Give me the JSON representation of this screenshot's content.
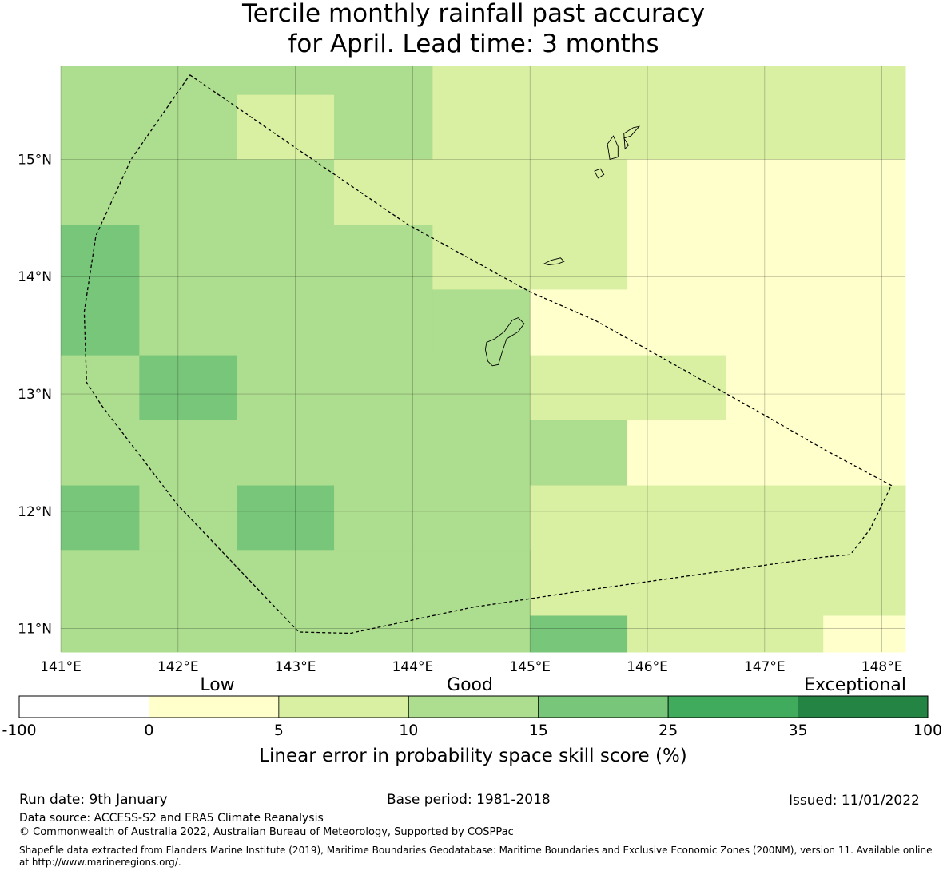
{
  "title": {
    "line1": "Tercile monthly rainfall past accuracy",
    "line2": "for April. Lead time: 3 months"
  },
  "map": {
    "lon_range": [
      141.0,
      148.2
    ],
    "lat_range": [
      10.8,
      15.8
    ],
    "x_ticks": [
      {
        "value": 141,
        "label": "141°E"
      },
      {
        "value": 142,
        "label": "142°E"
      },
      {
        "value": 143,
        "label": "143°E"
      },
      {
        "value": 144,
        "label": "144°E"
      },
      {
        "value": 145,
        "label": "145°E"
      },
      {
        "value": 146,
        "label": "146°E"
      },
      {
        "value": 147,
        "label": "147°E"
      },
      {
        "value": 148,
        "label": "148°E"
      }
    ],
    "y_ticks": [
      {
        "value": 15,
        "label": "15°N"
      },
      {
        "value": 14,
        "label": "14°N"
      },
      {
        "value": 13,
        "label": "13°N"
      },
      {
        "value": 12,
        "label": "12°N"
      },
      {
        "value": 11,
        "label": "11°N"
      }
    ],
    "grid": true,
    "bin_colors": [
      "#ffffff",
      "#ffffcc",
      "#d9f0a3",
      "#addd8e",
      "#78c679",
      "#41ab5d",
      "#238443"
    ],
    "cells": [
      {
        "lon": [
          141.0,
          142.5
        ],
        "lat": [
          15.0,
          15.8
        ],
        "bin": 3
      },
      {
        "lon": [
          142.5,
          143.33
        ],
        "lat": [
          15.55,
          15.8
        ],
        "bin": 3
      },
      {
        "lon": [
          142.5,
          143.33
        ],
        "lat": [
          15.0,
          15.55
        ],
        "bin": 2
      },
      {
        "lon": [
          143.33,
          144.17
        ],
        "lat": [
          15.0,
          15.8
        ],
        "bin": 3
      },
      {
        "lon": [
          144.17,
          148.2
        ],
        "lat": [
          15.0,
          15.8
        ],
        "bin": 2
      },
      {
        "lon": [
          141.0,
          143.33
        ],
        "lat": [
          14.44,
          15.0
        ],
        "bin": 3
      },
      {
        "lon": [
          143.33,
          145.83
        ],
        "lat": [
          14.44,
          15.0
        ],
        "bin": 2
      },
      {
        "lon": [
          145.83,
          148.2
        ],
        "lat": [
          14.44,
          15.0
        ],
        "bin": 1
      },
      {
        "lon": [
          141.0,
          141.67
        ],
        "lat": [
          13.33,
          14.44
        ],
        "bin": 4
      },
      {
        "lon": [
          141.67,
          144.17
        ],
        "lat": [
          13.33,
          14.44
        ],
        "bin": 3
      },
      {
        "lon": [
          144.17,
          145.83
        ],
        "lat": [
          13.89,
          14.44
        ],
        "bin": 2
      },
      {
        "lon": [
          144.17,
          145.0
        ],
        "lat": [
          13.33,
          13.89
        ],
        "bin": 3
      },
      {
        "lon": [
          145.0,
          145.83
        ],
        "lat": [
          13.33,
          13.89
        ],
        "bin": 1
      },
      {
        "lon": [
          145.83,
          148.2
        ],
        "lat": [
          13.33,
          14.44
        ],
        "bin": 1
      },
      {
        "lon": [
          141.0,
          141.67
        ],
        "lat": [
          12.22,
          13.33
        ],
        "bin": 3
      },
      {
        "lon": [
          141.67,
          142.5
        ],
        "lat": [
          12.78,
          13.33
        ],
        "bin": 4
      },
      {
        "lon": [
          141.67,
          142.5
        ],
        "lat": [
          12.22,
          12.78
        ],
        "bin": 3
      },
      {
        "lon": [
          142.5,
          145.0
        ],
        "lat": [
          12.22,
          13.33
        ],
        "bin": 3
      },
      {
        "lon": [
          145.0,
          146.67
        ],
        "lat": [
          12.78,
          13.33
        ],
        "bin": 2
      },
      {
        "lon": [
          145.0,
          145.83
        ],
        "lat": [
          12.22,
          12.78
        ],
        "bin": 3
      },
      {
        "lon": [
          145.83,
          146.67
        ],
        "lat": [
          12.22,
          12.78
        ],
        "bin": 1
      },
      {
        "lon": [
          146.67,
          148.2
        ],
        "lat": [
          12.22,
          13.33
        ],
        "bin": 1
      },
      {
        "lon": [
          141.0,
          141.67
        ],
        "lat": [
          11.67,
          12.22
        ],
        "bin": 4
      },
      {
        "lon": [
          141.67,
          142.5
        ],
        "lat": [
          11.67,
          12.22
        ],
        "bin": 3
      },
      {
        "lon": [
          142.5,
          143.33
        ],
        "lat": [
          11.67,
          12.22
        ],
        "bin": 4
      },
      {
        "lon": [
          143.33,
          145.0
        ],
        "lat": [
          11.67,
          12.22
        ],
        "bin": 3
      },
      {
        "lon": [
          145.0,
          148.2
        ],
        "lat": [
          11.11,
          12.22
        ],
        "bin": 2
      },
      {
        "lon": [
          141.0,
          145.0
        ],
        "lat": [
          10.8,
          11.67
        ],
        "bin": 3
      },
      {
        "lon": [
          145.0,
          145.83
        ],
        "lat": [
          10.8,
          11.11
        ],
        "bin": 4
      },
      {
        "lon": [
          145.83,
          147.5
        ],
        "lat": [
          10.8,
          11.11
        ],
        "bin": 2
      },
      {
        "lon": [
          147.5,
          148.2
        ],
        "lat": [
          10.8,
          11.11
        ],
        "bin": 1
      }
    ],
    "eez_boundary": [
      [
        142.1,
        15.72
      ],
      [
        143.0,
        15.1
      ],
      [
        143.95,
        14.45
      ],
      [
        145.0,
        13.87
      ],
      [
        145.55,
        13.63
      ],
      [
        146.0,
        13.38
      ],
      [
        146.5,
        13.1
      ],
      [
        147.0,
        12.82
      ],
      [
        147.5,
        12.53
      ],
      [
        148.08,
        12.22
      ],
      [
        147.9,
        11.85
      ],
      [
        147.73,
        11.63
      ],
      [
        147.5,
        11.61
      ],
      [
        146.5,
        11.47
      ],
      [
        145.5,
        11.33
      ],
      [
        144.5,
        11.18
      ],
      [
        143.47,
        10.96
      ],
      [
        143.03,
        10.97
      ],
      [
        142.0,
        12.05
      ],
      [
        141.35,
        12.9
      ],
      [
        141.22,
        13.1
      ],
      [
        141.2,
        13.7
      ],
      [
        141.3,
        14.35
      ],
      [
        141.6,
        15.0
      ],
      [
        142.1,
        15.72
      ]
    ],
    "islands": [
      [
        [
          144.63,
          13.44
        ],
        [
          144.7,
          13.47
        ],
        [
          144.78,
          13.53
        ],
        [
          144.85,
          13.63
        ],
        [
          144.9,
          13.65
        ],
        [
          144.95,
          13.6
        ],
        [
          144.9,
          13.53
        ],
        [
          144.8,
          13.47
        ],
        [
          144.76,
          13.35
        ],
        [
          144.73,
          13.25
        ],
        [
          144.68,
          13.24
        ],
        [
          144.64,
          13.28
        ],
        [
          144.62,
          13.38
        ],
        [
          144.63,
          13.44
        ]
      ],
      [
        [
          145.12,
          14.11
        ],
        [
          145.18,
          14.14
        ],
        [
          145.26,
          14.16
        ],
        [
          145.29,
          14.13
        ],
        [
          145.24,
          14.11
        ],
        [
          145.16,
          14.1
        ],
        [
          145.12,
          14.11
        ]
      ],
      [
        [
          145.55,
          14.9
        ],
        [
          145.6,
          14.92
        ],
        [
          145.63,
          14.87
        ],
        [
          145.58,
          14.84
        ],
        [
          145.55,
          14.9
        ]
      ],
      [
        [
          145.68,
          15.0
        ],
        [
          145.75,
          15.02
        ],
        [
          145.75,
          15.11
        ],
        [
          145.71,
          15.2
        ],
        [
          145.66,
          15.13
        ],
        [
          145.68,
          15.0
        ]
      ],
      [
        [
          145.81,
          15.09
        ],
        [
          145.84,
          15.12
        ],
        [
          145.8,
          15.18
        ],
        [
          145.86,
          15.2
        ],
        [
          145.93,
          15.28
        ],
        [
          145.88,
          15.27
        ],
        [
          145.8,
          15.22
        ],
        [
          145.81,
          15.09
        ]
      ]
    ]
  },
  "colorbar": {
    "category_labels": [
      "Low",
      "Good",
      "Exceptional"
    ],
    "boundaries": [
      -100,
      0,
      5,
      10,
      15,
      25,
      35,
      100
    ],
    "tick_labels": [
      "-100",
      "0",
      "5",
      "10",
      "15",
      "25",
      "35",
      "100"
    ],
    "colors": [
      "#ffffff",
      "#ffffcc",
      "#d9f0a3",
      "#addd8e",
      "#78c679",
      "#41ab5d",
      "#238443"
    ],
    "axis_label": "Linear error in probability space skill score (%)"
  },
  "footer": {
    "run_date": "Run date: 9th January",
    "base_period": "Base period: 1981-2018",
    "issued": "Issued: 11/01/2022",
    "data_source": "Data source: ACCESS-S2 and ERA5 Climate Reanalysis",
    "copyright": "© Commonwealth of Australia 2022, Australian Bureau of Meteorology, Supported by COSPPac",
    "shapefile": "Shapefile data extracted from Flanders Marine Institute (2019), Maritime Boundaries Geodatabase: Maritime Boundaries and Exclusive Economic Zones (200NM), version 11. Available online at http://www.marineregions.org/."
  }
}
